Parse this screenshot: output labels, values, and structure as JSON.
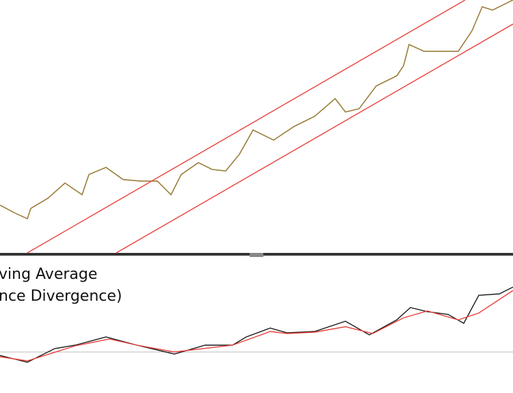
{
  "chart_data": [
    {
      "type": "line",
      "xlim": [
        0,
        150
      ],
      "ylim": [
        0,
        100
      ],
      "series": [
        {
          "color": "#9a7d3a",
          "x": [
            0,
            4,
            8,
            9,
            14,
            19,
            24,
            26,
            31,
            36,
            41,
            46,
            50,
            53,
            58,
            62,
            66,
            70,
            74,
            80,
            86,
            92,
            98,
            101,
            105,
            110,
            116,
            118,
            119.6,
            124,
            130,
            134,
            138,
            141,
            144,
            150
          ],
          "values": [
            18.9,
            16,
            13.5,
            17.6,
            21.6,
            27.6,
            23,
            31,
            33.8,
            29,
            28.4,
            28.4,
            23,
            31,
            35.7,
            33,
            32.4,
            39,
            48.6,
            44.6,
            50,
            54,
            61,
            55.7,
            57,
            66,
            70,
            74,
            82.4,
            79.7,
            79.7,
            79.7,
            87.8,
            97.3,
            96,
            100
          ]
        },
        {
          "color": "#e8413c",
          "x": [
            8,
            136
          ],
          "values": [
            0,
            100
          ]
        },
        {
          "color": "#e8413c",
          "x": [
            34,
            150
          ],
          "values": [
            0,
            90.5
          ]
        }
      ]
    },
    {
      "type": "line",
      "xlim": [
        0,
        150
      ],
      "ylim": [
        -3,
        7
      ],
      "baseline": 0,
      "title_lines": [
        "ving Average",
        "nce Divergence)"
      ],
      "series": [
        {
          "color": "#1a1a1a",
          "x": [
            0,
            8,
            16,
            22,
            31,
            40,
            51,
            60,
            68,
            72,
            79,
            84,
            92,
            101,
            108,
            116,
            120,
            125,
            131,
            135.6,
            140,
            146,
            150
          ],
          "values": [
            -0.25,
            -0.75,
            0.25,
            0.5,
            1.1,
            0.5,
            -0.15,
            0.5,
            0.5,
            1.1,
            1.75,
            1.4,
            1.5,
            2.25,
            1.25,
            2.35,
            3.25,
            2.95,
            2.75,
            2.1,
            4.15,
            4.25,
            4.75
          ]
        },
        {
          "color": "#e8413c",
          "x": [
            0,
            8,
            22,
            32,
            40,
            51,
            68,
            79,
            84,
            92,
            101,
            109,
            118,
            125,
            134,
            140,
            150
          ],
          "values": [
            -0.35,
            -0.65,
            0.45,
            0.95,
            0.5,
            0,
            0.5,
            1.5,
            1.35,
            1.45,
            1.85,
            1.35,
            2.5,
            3,
            2.35,
            2.85,
            4.5
          ]
        }
      ]
    }
  ]
}
